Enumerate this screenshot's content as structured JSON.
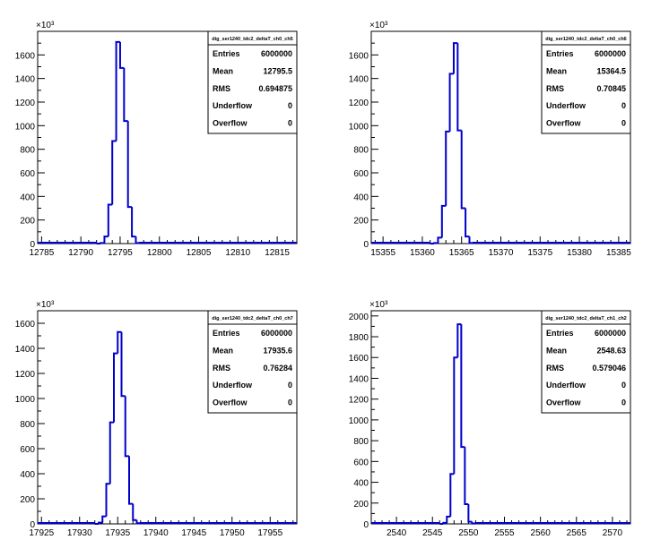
{
  "panels": [
    {
      "stats": {
        "title": "dig_ser1240_tdc2_deltaT_ch0_ch5",
        "rows": [
          {
            "label": "Entries",
            "value": "6000000"
          },
          {
            "label": "Mean",
            "value": "12795.5"
          },
          {
            "label": "RMS",
            "value": "0.694875"
          },
          {
            "label": "Underflow",
            "value": "0"
          },
          {
            "label": "Overflow",
            "value": "0"
          }
        ]
      }
    },
    {
      "stats": {
        "title": "dig_ser1240_tdc2_deltaT_ch0_ch6",
        "rows": [
          {
            "label": "Entries",
            "value": "6000000"
          },
          {
            "label": "Mean",
            "value": "15364.5"
          },
          {
            "label": "RMS",
            "value": "0.70845"
          },
          {
            "label": "Underflow",
            "value": "0"
          },
          {
            "label": "Overflow",
            "value": "0"
          }
        ]
      }
    },
    {
      "stats": {
        "title": "dig_ser1240_tdc2_deltaT_ch0_ch7",
        "rows": [
          {
            "label": "Entries",
            "value": "6000000"
          },
          {
            "label": "Mean",
            "value": "17935.6"
          },
          {
            "label": "RMS",
            "value": "0.76284"
          },
          {
            "label": "Underflow",
            "value": "0"
          },
          {
            "label": "Overflow",
            "value": "0"
          }
        ]
      }
    },
    {
      "stats": {
        "title": "dig_ser1240_tdc2_deltaT_ch1_ch2",
        "rows": [
          {
            "label": "Entries",
            "value": "6000000"
          },
          {
            "label": "Mean",
            "value": "2548.63"
          },
          {
            "label": "RMS",
            "value": "0.579046"
          },
          {
            "label": "Underflow",
            "value": "0"
          },
          {
            "label": "Overflow",
            "value": "0"
          }
        ]
      }
    }
  ],
  "chart_data": [
    {
      "type": "bar",
      "title": "",
      "xlabel": "",
      "ylabel": "",
      "y_scale_label": "×10³",
      "y_multiplier": 1000,
      "xlim": [
        12784.5,
        12817.5
      ],
      "ylim": [
        0,
        1800
      ],
      "xticks": [
        12785,
        12790,
        12795,
        12800,
        12805,
        12810,
        12815
      ],
      "yticks": [
        0,
        200,
        400,
        600,
        800,
        1000,
        1200,
        1400,
        1600
      ],
      "bin_width": 0.5,
      "bins": [
        {
          "x": 12792.0,
          "y": 0
        },
        {
          "x": 12792.5,
          "y": 5
        },
        {
          "x": 12793.0,
          "y": 60
        },
        {
          "x": 12793.5,
          "y": 330
        },
        {
          "x": 12794.0,
          "y": 870
        },
        {
          "x": 12794.5,
          "y": 1710
        },
        {
          "x": 12795.0,
          "y": 1490
        },
        {
          "x": 12795.5,
          "y": 1040
        },
        {
          "x": 12796.0,
          "y": 310
        },
        {
          "x": 12796.5,
          "y": 60
        },
        {
          "x": 12797.0,
          "y": 5
        }
      ],
      "grid": false
    },
    {
      "type": "bar",
      "title": "",
      "xlabel": "",
      "ylabel": "",
      "y_scale_label": "×10³",
      "y_multiplier": 1000,
      "xlim": [
        15353.5,
        15386.5
      ],
      "ylim": [
        0,
        1800
      ],
      "xticks": [
        15355,
        15360,
        15365,
        15370,
        15375,
        15380,
        15385
      ],
      "yticks": [
        0,
        200,
        400,
        600,
        800,
        1000,
        1200,
        1400,
        1600
      ],
      "bin_width": 0.5,
      "bins": [
        {
          "x": 15361.0,
          "y": 0
        },
        {
          "x": 15361.5,
          "y": 5
        },
        {
          "x": 15362.0,
          "y": 50
        },
        {
          "x": 15362.5,
          "y": 320
        },
        {
          "x": 15363.0,
          "y": 950
        },
        {
          "x": 15363.5,
          "y": 1440
        },
        {
          "x": 15364.0,
          "y": 1700
        },
        {
          "x": 15364.5,
          "y": 960
        },
        {
          "x": 15365.0,
          "y": 300
        },
        {
          "x": 15365.5,
          "y": 60
        },
        {
          "x": 15366.0,
          "y": 5
        }
      ],
      "grid": false
    },
    {
      "type": "bar",
      "title": "",
      "xlabel": "",
      "ylabel": "",
      "y_scale_label": "×10³",
      "y_multiplier": 1000,
      "xlim": [
        17924.5,
        17958.5
      ],
      "ylim": [
        0,
        1700
      ],
      "xticks": [
        17925,
        17930,
        17935,
        17940,
        17945,
        17950,
        17955
      ],
      "yticks": [
        0,
        200,
        400,
        600,
        800,
        1000,
        1200,
        1400,
        1600
      ],
      "bin_width": 0.5,
      "bins": [
        {
          "x": 17932.0,
          "y": 0
        },
        {
          "x": 17932.5,
          "y": 10
        },
        {
          "x": 17933.0,
          "y": 60
        },
        {
          "x": 17933.5,
          "y": 320
        },
        {
          "x": 17934.0,
          "y": 810
        },
        {
          "x": 17934.5,
          "y": 1360
        },
        {
          "x": 17935.0,
          "y": 1530
        },
        {
          "x": 17935.5,
          "y": 1020
        },
        {
          "x": 17936.0,
          "y": 540
        },
        {
          "x": 17936.5,
          "y": 160
        },
        {
          "x": 17937.0,
          "y": 30
        },
        {
          "x": 17937.5,
          "y": 5
        }
      ],
      "grid": false
    },
    {
      "type": "bar",
      "title": "",
      "xlabel": "",
      "ylabel": "",
      "y_scale_label": "×10³",
      "y_multiplier": 1000,
      "xlim": [
        2536.5,
        2572.5
      ],
      "ylim": [
        0,
        2050
      ],
      "xticks": [
        2540,
        2545,
        2550,
        2555,
        2560,
        2565,
        2570
      ],
      "yticks": [
        0,
        200,
        400,
        600,
        800,
        1000,
        1200,
        1400,
        1600,
        1800,
        2000
      ],
      "bin_width": 0.5,
      "bins": [
        {
          "x": 2546.0,
          "y": 0
        },
        {
          "x": 2546.5,
          "y": 10
        },
        {
          "x": 2547.0,
          "y": 70
        },
        {
          "x": 2547.5,
          "y": 480
        },
        {
          "x": 2548.0,
          "y": 1600
        },
        {
          "x": 2548.5,
          "y": 1920
        },
        {
          "x": 2549.0,
          "y": 740
        },
        {
          "x": 2549.5,
          "y": 190
        },
        {
          "x": 2550.0,
          "y": 20
        },
        {
          "x": 2550.5,
          "y": 3
        }
      ],
      "grid": false
    }
  ]
}
